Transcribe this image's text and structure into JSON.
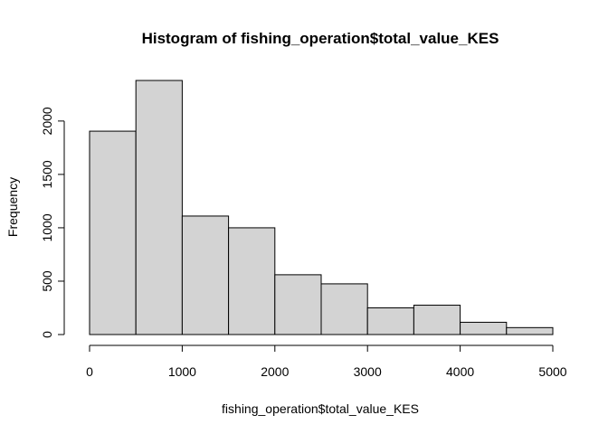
{
  "chart_data": {
    "type": "bar",
    "title": "Histogram of fishing_operation$total_value_KES",
    "xlabel": "fishing_operation$total_value_KES",
    "ylabel": "Frequency",
    "bins": [
      {
        "start": 0,
        "end": 500,
        "count": 1905
      },
      {
        "start": 500,
        "end": 1000,
        "count": 2380
      },
      {
        "start": 1000,
        "end": 1500,
        "count": 1110
      },
      {
        "start": 1500,
        "end": 2000,
        "count": 1000
      },
      {
        "start": 2000,
        "end": 2500,
        "count": 560
      },
      {
        "start": 2500,
        "end": 3000,
        "count": 475
      },
      {
        "start": 3000,
        "end": 3500,
        "count": 250
      },
      {
        "start": 3500,
        "end": 4000,
        "count": 275
      },
      {
        "start": 4000,
        "end": 4500,
        "count": 115
      },
      {
        "start": 4500,
        "end": 5000,
        "count": 65
      }
    ],
    "xlim": [
      0,
      5000
    ],
    "ylim": [
      0,
      2380
    ],
    "xticks": [
      0,
      1000,
      2000,
      3000,
      4000,
      5000
    ],
    "yticks": [
      0,
      500,
      1000,
      1500,
      2000
    ],
    "bar_fill": "#d3d3d3",
    "grid": false
  }
}
